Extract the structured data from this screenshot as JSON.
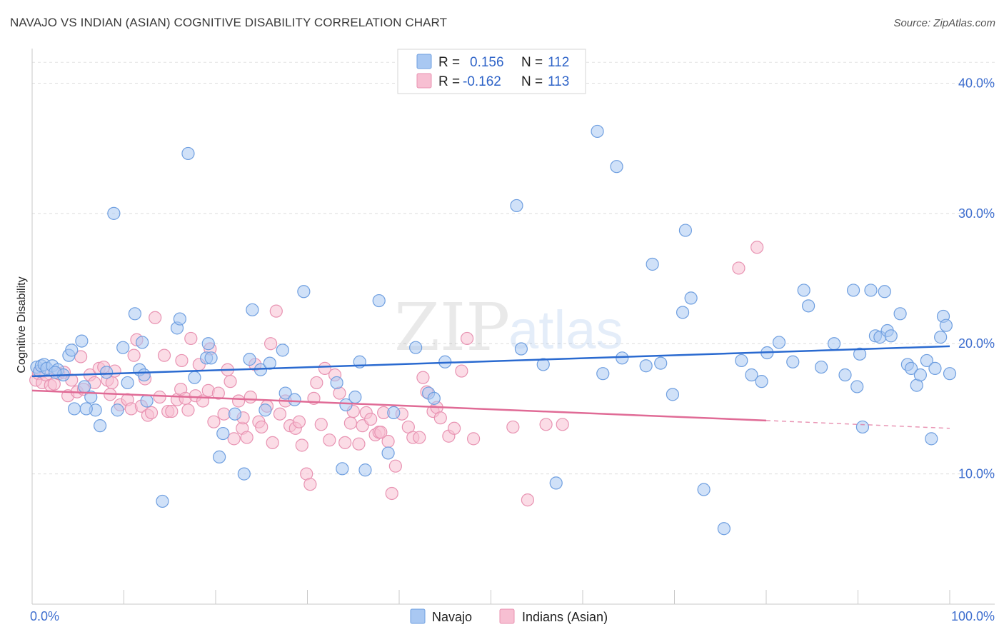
{
  "header": {
    "title": "NAVAJO VS INDIAN (ASIAN) COGNITIVE DISABILITY CORRELATION CHART",
    "source": "Source: ZipAtlas.com"
  },
  "watermark": {
    "zip": "ZIP",
    "atlas": "atlas"
  },
  "colors": {
    "navajo_fill": "#a9c8f2",
    "navajo_stroke": "#6f9fe0",
    "navajo_line": "#2a6ad0",
    "indian_fill": "#f7bfd2",
    "indian_stroke": "#e893b2",
    "indian_line": "#e06b96",
    "tick_label": "#3f6fcf"
  },
  "legend": {
    "rows": [
      {
        "r_label": "R =",
        "r_value": "0.156",
        "n_label": "N =",
        "n_value": "112"
      },
      {
        "r_label": "R =",
        "r_value": "-0.162",
        "n_label": "N =",
        "n_value": "113"
      }
    ]
  },
  "bottom_legend": {
    "navajo": "Navajo",
    "indian": "Indians (Asian)"
  },
  "chart_data": {
    "type": "scatter",
    "title": "NAVAJO VS INDIAN (ASIAN) COGNITIVE DISABILITY CORRELATION CHART",
    "xlabel": "",
    "ylabel": "Cognitive Disability",
    "xlim": [
      0,
      100
    ],
    "ylim": [
      0,
      42
    ],
    "x_tick_labels": [
      "0.0%",
      "100.0%"
    ],
    "y_ticks": [
      10,
      20,
      30,
      40
    ],
    "y_tick_labels": [
      "10.0%",
      "20.0%",
      "30.0%",
      "40.0%"
    ],
    "grid": true,
    "legend_position": "top-center",
    "series": [
      {
        "name": "Navajo",
        "r": 0.156,
        "n": 112,
        "trend": {
          "x0": 0,
          "y0": 17.5,
          "x1": 100,
          "y1": 19.8
        },
        "points": [
          [
            0.5,
            18.2
          ],
          [
            0.8,
            17.9
          ],
          [
            1.0,
            18.3
          ],
          [
            1.3,
            18.4
          ],
          [
            1.6,
            18.1
          ],
          [
            2.2,
            18.3
          ],
          [
            2.8,
            18.0
          ],
          [
            3.4,
            17.6
          ],
          [
            4.0,
            19.1
          ],
          [
            4.3,
            19.5
          ],
          [
            4.6,
            15.0
          ],
          [
            5.4,
            20.2
          ],
          [
            5.7,
            16.7
          ],
          [
            6.4,
            15.9
          ],
          [
            6.9,
            14.9
          ],
          [
            7.4,
            13.7
          ],
          [
            8.1,
            17.8
          ],
          [
            8.9,
            30.0
          ],
          [
            9.3,
            14.9
          ],
          [
            9.9,
            19.7
          ],
          [
            10.4,
            17.0
          ],
          [
            11.2,
            22.3
          ],
          [
            11.7,
            18.0
          ],
          [
            12.0,
            20.1
          ],
          [
            12.5,
            15.6
          ],
          [
            14.2,
            7.9
          ],
          [
            15.8,
            21.2
          ],
          [
            16.1,
            21.9
          ],
          [
            17.0,
            34.6
          ],
          [
            17.7,
            17.4
          ],
          [
            19.0,
            18.9
          ],
          [
            19.2,
            20.0
          ],
          [
            19.5,
            18.9
          ],
          [
            20.4,
            11.3
          ],
          [
            20.8,
            13.1
          ],
          [
            22.1,
            14.6
          ],
          [
            23.1,
            10.0
          ],
          [
            24.0,
            22.6
          ],
          [
            24.9,
            18.0
          ],
          [
            25.4,
            14.9
          ],
          [
            25.9,
            18.5
          ],
          [
            27.3,
            19.5
          ],
          [
            27.6,
            16.2
          ],
          [
            28.6,
            15.7
          ],
          [
            29.6,
            24.0
          ],
          [
            33.2,
            17.0
          ],
          [
            33.8,
            10.4
          ],
          [
            34.2,
            15.3
          ],
          [
            35.2,
            15.9
          ],
          [
            35.7,
            18.6
          ],
          [
            36.3,
            10.3
          ],
          [
            37.8,
            23.3
          ],
          [
            38.8,
            11.6
          ],
          [
            39.4,
            14.7
          ],
          [
            41.8,
            19.7
          ],
          [
            43.2,
            16.2
          ],
          [
            43.8,
            15.8
          ],
          [
            45.0,
            18.6
          ],
          [
            52.8,
            30.6
          ],
          [
            53.3,
            19.6
          ],
          [
            55.7,
            18.4
          ],
          [
            57.1,
            9.3
          ],
          [
            61.6,
            36.3
          ],
          [
            62.2,
            17.7
          ],
          [
            63.7,
            33.6
          ],
          [
            64.3,
            18.9
          ],
          [
            66.9,
            18.3
          ],
          [
            67.6,
            26.1
          ],
          [
            68.5,
            18.5
          ],
          [
            69.8,
            16.1
          ],
          [
            70.9,
            22.4
          ],
          [
            71.2,
            28.7
          ],
          [
            71.8,
            23.5
          ],
          [
            73.2,
            8.8
          ],
          [
            75.4,
            5.8
          ],
          [
            77.3,
            18.7
          ],
          [
            78.4,
            17.6
          ],
          [
            79.5,
            17.1
          ],
          [
            80.1,
            19.3
          ],
          [
            81.4,
            20.1
          ],
          [
            82.9,
            18.6
          ],
          [
            84.1,
            24.1
          ],
          [
            84.6,
            22.9
          ],
          [
            86.0,
            18.2
          ],
          [
            87.4,
            20.0
          ],
          [
            88.6,
            17.6
          ],
          [
            89.5,
            24.1
          ],
          [
            89.9,
            16.7
          ],
          [
            90.2,
            19.2
          ],
          [
            90.5,
            13.6
          ],
          [
            91.4,
            24.1
          ],
          [
            91.9,
            20.6
          ],
          [
            92.4,
            20.5
          ],
          [
            92.9,
            24.0
          ],
          [
            93.2,
            21.0
          ],
          [
            93.6,
            20.6
          ],
          [
            94.6,
            22.3
          ],
          [
            95.4,
            18.4
          ],
          [
            95.8,
            18.1
          ],
          [
            96.4,
            16.8
          ],
          [
            96.8,
            17.6
          ],
          [
            97.5,
            18.7
          ],
          [
            98.0,
            12.7
          ],
          [
            98.4,
            18.1
          ],
          [
            99.0,
            20.5
          ],
          [
            99.3,
            22.1
          ],
          [
            99.6,
            21.4
          ],
          [
            100.0,
            17.7
          ],
          [
            5.9,
            15.0
          ],
          [
            2.5,
            17.8
          ],
          [
            12.2,
            17.6
          ],
          [
            23.7,
            18.8
          ]
        ]
      },
      {
        "name": "Indians (Asian)",
        "r": -0.162,
        "n": 113,
        "trend": {
          "x0": 0,
          "y0": 16.4,
          "x1": 80,
          "y1": 14.1,
          "dash_x1": 100,
          "dash_y1": 13.5
        },
        "points": [
          [
            0.4,
            17.2
          ],
          [
            0.7,
            17.7
          ],
          [
            1.1,
            17.0
          ],
          [
            1.5,
            17.6
          ],
          [
            2.0,
            16.8
          ],
          [
            2.4,
            16.9
          ],
          [
            2.9,
            17.7
          ],
          [
            3.5,
            17.8
          ],
          [
            3.9,
            16.0
          ],
          [
            4.3,
            17.2
          ],
          [
            4.9,
            16.3
          ],
          [
            5.3,
            19.0
          ],
          [
            5.6,
            16.5
          ],
          [
            6.3,
            17.6
          ],
          [
            6.8,
            17.0
          ],
          [
            7.3,
            18.1
          ],
          [
            7.8,
            18.2
          ],
          [
            8.2,
            17.2
          ],
          [
            8.7,
            17.0
          ],
          [
            9.0,
            17.9
          ],
          [
            9.6,
            15.3
          ],
          [
            10.4,
            15.7
          ],
          [
            10.8,
            15.0
          ],
          [
            11.1,
            19.1
          ],
          [
            11.4,
            20.3
          ],
          [
            11.9,
            15.2
          ],
          [
            12.3,
            17.3
          ],
          [
            12.6,
            14.5
          ],
          [
            13.0,
            14.7
          ],
          [
            13.4,
            22.0
          ],
          [
            13.9,
            15.9
          ],
          [
            14.4,
            19.1
          ],
          [
            14.8,
            14.8
          ],
          [
            15.2,
            14.8
          ],
          [
            15.8,
            15.7
          ],
          [
            16.2,
            16.5
          ],
          [
            16.7,
            15.8
          ],
          [
            17.0,
            14.9
          ],
          [
            17.3,
            20.4
          ],
          [
            17.8,
            16.0
          ],
          [
            18.2,
            18.4
          ],
          [
            18.6,
            15.6
          ],
          [
            19.2,
            16.4
          ],
          [
            19.4,
            19.6
          ],
          [
            19.8,
            14.0
          ],
          [
            20.3,
            16.2
          ],
          [
            20.9,
            14.6
          ],
          [
            21.3,
            18.0
          ],
          [
            21.6,
            17.1
          ],
          [
            22.0,
            12.7
          ],
          [
            22.5,
            15.6
          ],
          [
            22.9,
            13.5
          ],
          [
            23.4,
            12.8
          ],
          [
            23.8,
            15.9
          ],
          [
            24.3,
            18.4
          ],
          [
            24.7,
            14.0
          ],
          [
            25.0,
            13.6
          ],
          [
            25.6,
            15.2
          ],
          [
            26.2,
            12.4
          ],
          [
            26.6,
            22.5
          ],
          [
            27.0,
            14.6
          ],
          [
            27.6,
            15.6
          ],
          [
            28.1,
            13.7
          ],
          [
            28.7,
            13.5
          ],
          [
            29.1,
            14.0
          ],
          [
            29.4,
            12.2
          ],
          [
            29.9,
            10.0
          ],
          [
            30.3,
            9.2
          ],
          [
            30.7,
            15.8
          ],
          [
            31.5,
            13.8
          ],
          [
            31.9,
            18.1
          ],
          [
            32.4,
            12.6
          ],
          [
            33.0,
            17.6
          ],
          [
            33.5,
            16.2
          ],
          [
            34.1,
            12.4
          ],
          [
            34.7,
            13.9
          ],
          [
            35.0,
            14.8
          ],
          [
            35.6,
            12.3
          ],
          [
            36.0,
            13.7
          ],
          [
            36.4,
            14.7
          ],
          [
            36.9,
            14.2
          ],
          [
            37.4,
            13.0
          ],
          [
            37.8,
            13.2
          ],
          [
            38.3,
            14.7
          ],
          [
            38.8,
            12.5
          ],
          [
            39.2,
            8.5
          ],
          [
            39.6,
            10.6
          ],
          [
            40.3,
            14.6
          ],
          [
            41.0,
            13.6
          ],
          [
            41.5,
            12.8
          ],
          [
            42.2,
            12.8
          ],
          [
            42.6,
            17.4
          ],
          [
            43.0,
            16.3
          ],
          [
            43.7,
            14.8
          ],
          [
            44.1,
            15.1
          ],
          [
            44.5,
            14.3
          ],
          [
            45.4,
            12.9
          ],
          [
            46.0,
            13.5
          ],
          [
            46.8,
            17.9
          ],
          [
            47.4,
            20.4
          ],
          [
            48.1,
            12.7
          ],
          [
            52.4,
            13.6
          ],
          [
            54.0,
            8.0
          ],
          [
            56.0,
            13.8
          ],
          [
            57.8,
            13.8
          ],
          [
            77.0,
            25.8
          ],
          [
            79.0,
            27.4
          ],
          [
            26.0,
            20.0
          ],
          [
            16.3,
            18.7
          ],
          [
            8.5,
            16.1
          ],
          [
            31.0,
            17.0
          ],
          [
            38.0,
            13.2
          ],
          [
            23.0,
            14.3
          ]
        ]
      }
    ]
  }
}
